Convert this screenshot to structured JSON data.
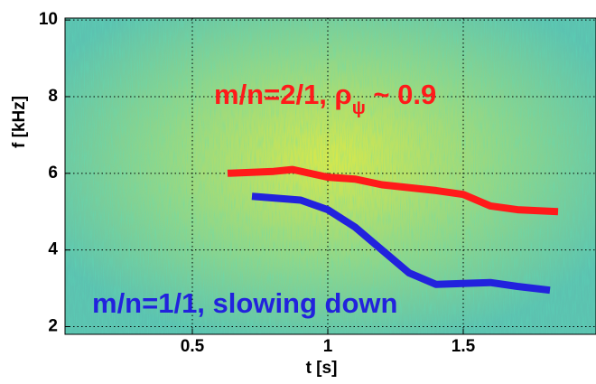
{
  "chart_data": {
    "type": "line",
    "xlabel": "t [s]",
    "ylabel": "f [kHz]",
    "xlim": [
      0.03,
      1.99
    ],
    "ylim": [
      1.8,
      10.05
    ],
    "xticks": [
      0.5,
      1,
      1.5
    ],
    "yticks": [
      2,
      4,
      6,
      8,
      10
    ],
    "grid": true,
    "series": [
      {
        "color": "#ff1a1a",
        "x": [
          0.63,
          0.8,
          0.87,
          1.0,
          1.1,
          1.2,
          1.4,
          1.5,
          1.6,
          1.7,
          1.85
        ],
        "values": [
          6.0,
          6.05,
          6.1,
          5.9,
          5.85,
          5.7,
          5.55,
          5.45,
          5.15,
          5.05,
          5.0
        ]
      },
      {
        "color": "#2222dd",
        "x": [
          0.72,
          0.9,
          1.0,
          1.1,
          1.2,
          1.3,
          1.4,
          1.6,
          1.7,
          1.82
        ],
        "values": [
          5.4,
          5.3,
          5.05,
          4.6,
          4.0,
          3.4,
          3.1,
          3.15,
          3.05,
          2.95
        ]
      }
    ],
    "annotations": [
      {
        "text": "m/n=2/1, ρ",
        "subscript": "ψ",
        "suffix": " ~ 0.9",
        "color": "#ff1a1a",
        "x": 0.58,
        "y": 8.0
      },
      {
        "text": "m/n=1/1, slowing down",
        "color": "#2222dd",
        "x": 0.13,
        "y": 2.55
      }
    ]
  }
}
